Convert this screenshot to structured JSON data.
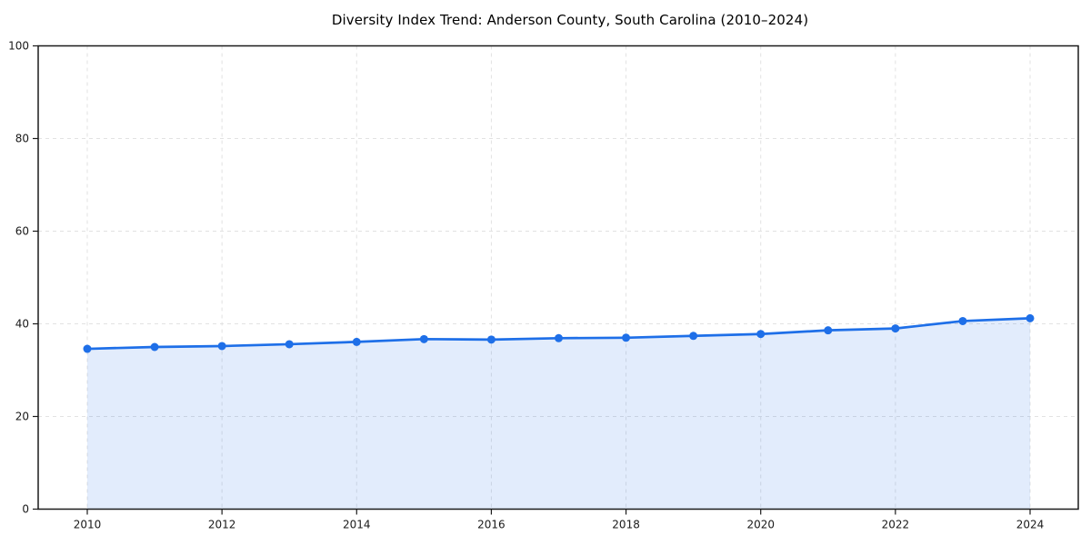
{
  "chart_data": {
    "type": "area",
    "title": "Diversity Index Trend: Anderson County, South Carolina (2010–2024)",
    "x": [
      2010,
      2011,
      2012,
      2013,
      2014,
      2015,
      2016,
      2017,
      2018,
      2019,
      2020,
      2021,
      2022,
      2023,
      2024
    ],
    "values": [
      34.6,
      35.0,
      35.2,
      35.6,
      36.1,
      36.7,
      36.6,
      36.9,
      37.0,
      37.4,
      37.8,
      38.6,
      39.0,
      40.6,
      41.2
    ],
    "xticks": [
      2010,
      2012,
      2014,
      2016,
      2018,
      2020,
      2022,
      2024
    ],
    "yticks": [
      0,
      20,
      40,
      60,
      80,
      100
    ],
    "ylim": [
      0,
      100
    ],
    "grid": true,
    "grid_style": "dashed",
    "legend": "none",
    "colors": {
      "line": "#1e6fe8",
      "marker": "#1e6fe8",
      "fill": "rgba(30, 111, 232, 0.13)",
      "grid": "#e2e2e2",
      "axis": "#1a1a1a",
      "tick_text": "#1a1a1a",
      "background": "#ffffff"
    }
  }
}
